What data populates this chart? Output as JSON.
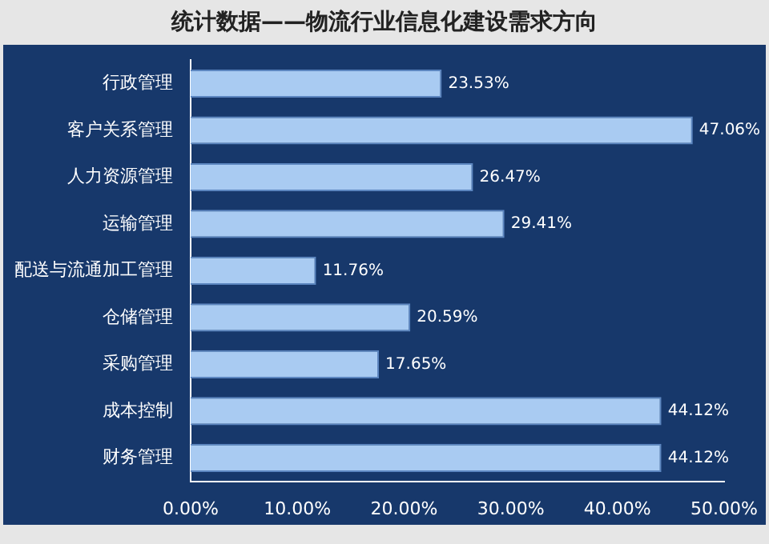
{
  "chart_data": {
    "type": "bar",
    "orientation": "horizontal",
    "title": "统计数据——物流行业信息化建设需求方向",
    "categories": [
      "行政管理",
      "客户关系管理",
      "人力资源管理",
      "运输管理",
      "配送与流通加工管理",
      "仓储管理",
      "采购管理",
      "成本控制",
      "财务管理"
    ],
    "values": [
      23.53,
      47.06,
      26.47,
      29.41,
      11.76,
      20.59,
      17.65,
      44.12,
      44.12
    ],
    "value_labels": [
      "23.53%",
      "47.06%",
      "26.47%",
      "29.41%",
      "11.76%",
      "20.59%",
      "17.65%",
      "44.12%",
      "44.12%"
    ],
    "color": "#a9cbf2",
    "xlim": [
      0,
      50
    ],
    "xticks": [
      {
        "value": 0,
        "label": "0.00%"
      },
      {
        "value": 10,
        "label": "10.00%"
      },
      {
        "value": 20,
        "label": "20.00%"
      },
      {
        "value": 30,
        "label": "30.00%"
      },
      {
        "value": 40,
        "label": "40.00%"
      },
      {
        "value": 50,
        "label": "50.00%"
      }
    ],
    "grid": false,
    "legend": false
  }
}
